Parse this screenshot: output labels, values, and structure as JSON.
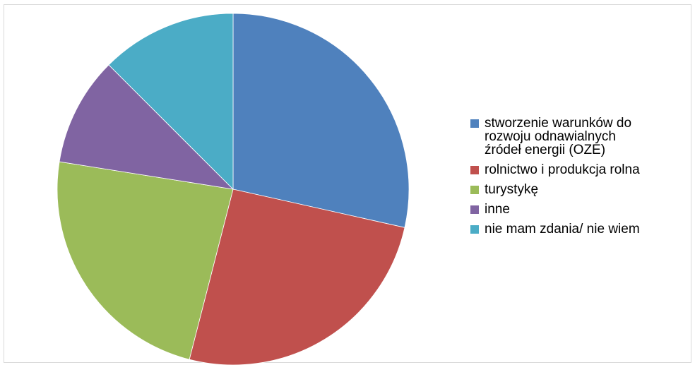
{
  "chart_data": {
    "type": "pie",
    "title": "",
    "legend_position": "right",
    "series": [
      {
        "values": [
          28.5,
          25.5,
          23.5,
          10,
          12.5
        ]
      }
    ],
    "categories": [
      "stworzenie warunków do rozwoju odnawialnych źródeł energii (OZE)",
      "rolnictwo i produkcja rolna",
      "turystykę",
      "inne",
      "nie mam zdania/ nie wiem"
    ],
    "legend": [
      {
        "line1": "stworzenie warunków do",
        "line2": "rozwoju odnawialnych",
        "line3": "źródeł energii (OZE)",
        "color": "#4F81BD"
      },
      {
        "line1": "rolnictwo i produkcja rolna",
        "color": "#C0504D"
      },
      {
        "line1": "turystykę",
        "color": "#9BBB59"
      },
      {
        "line1": "inne",
        "color": "#8064A2"
      },
      {
        "line1": "nie mam zdania/ nie wiem",
        "color": "#4BACC6"
      }
    ],
    "colors": [
      "#4F81BD",
      "#C0504D",
      "#9BBB59",
      "#8064A2",
      "#4BACC6"
    ],
    "start_angle": "12 o'clock",
    "direction": "clockwise"
  }
}
